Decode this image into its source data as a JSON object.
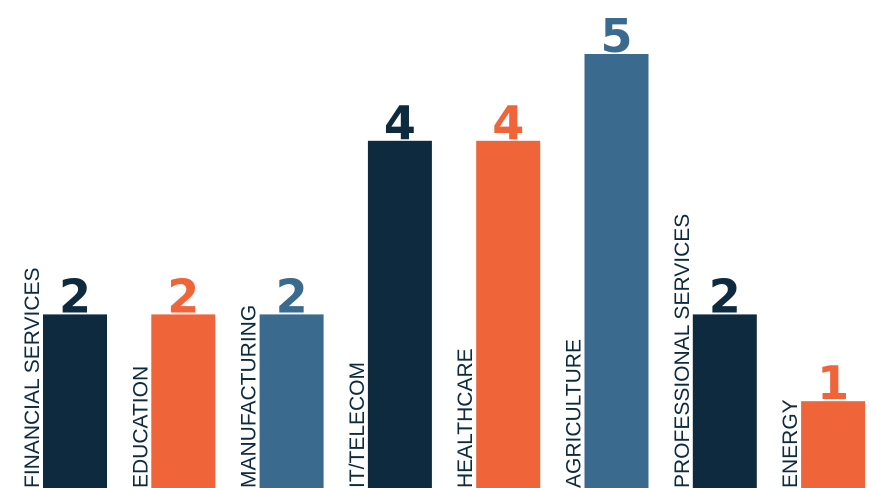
{
  "chart_data": {
    "type": "bar",
    "title": "",
    "xlabel": "",
    "ylabel": "",
    "ylim": [
      0,
      5
    ],
    "grid": false,
    "legend": "none",
    "categories": [
      "FINANCIAL SERVICES",
      "EDUCATION",
      "MANUFACTURING",
      "IT/TELECOM",
      "HEALTHCARE",
      "AGRICULTURE",
      "PROFESSIONAL SERVICES",
      "ENERGY"
    ],
    "values": [
      2,
      2,
      2,
      4,
      4,
      5,
      2,
      1
    ],
    "value_labels": [
      "2",
      "2",
      "2",
      "4",
      "4",
      "5",
      "2",
      "1"
    ],
    "colors": [
      "#0e2a3e",
      "#f0643a",
      "#3a6a8e",
      "#0e2a3e",
      "#f0643a",
      "#3a6a8e",
      "#0e2a3e",
      "#f0643a"
    ]
  }
}
